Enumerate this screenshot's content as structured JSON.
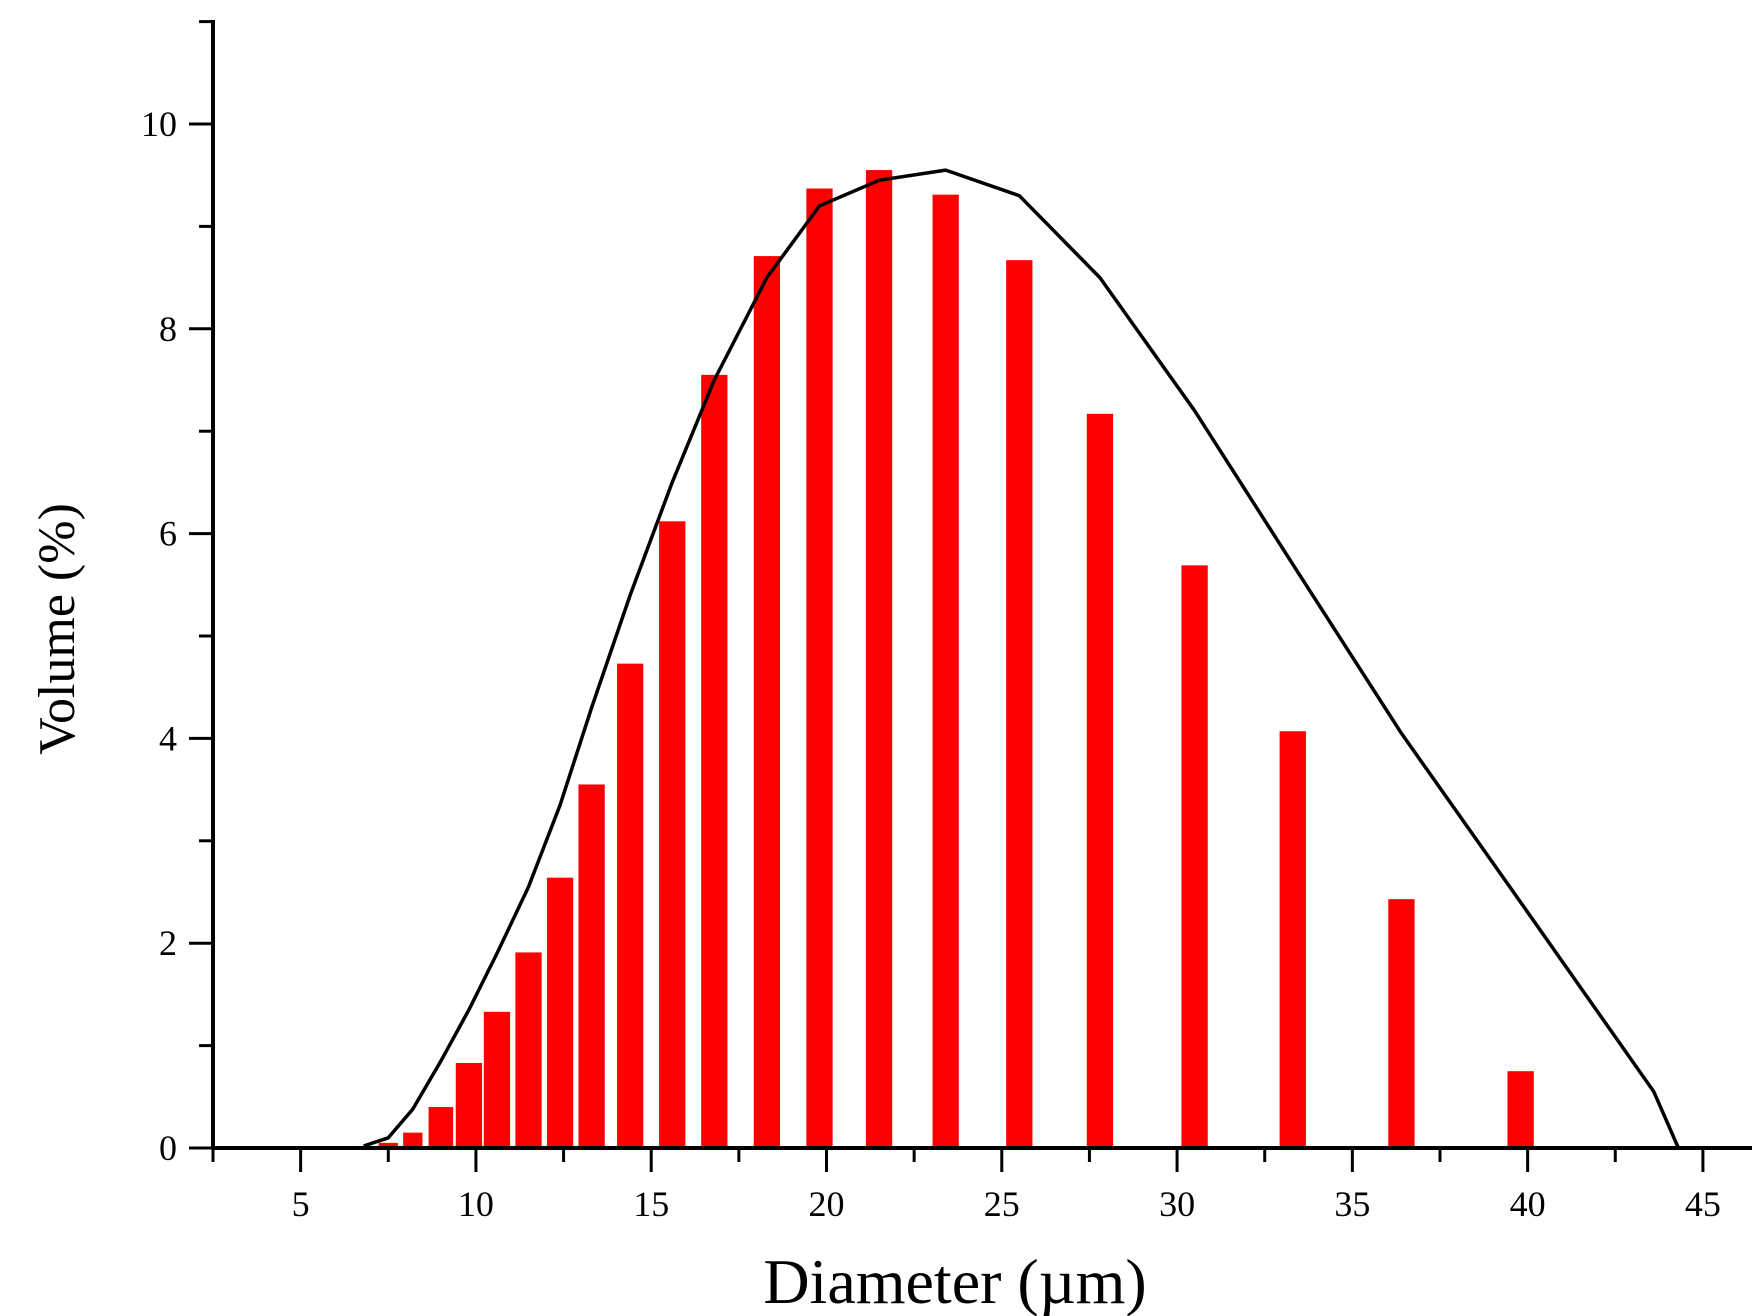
{
  "chart_data": {
    "type": "bar",
    "xlabel": "Diameter (µm)",
    "ylabel": "Volume (%)",
    "xlim": [
      2.5,
      46.4
    ],
    "ylim": [
      0,
      11
    ],
    "xticks": [
      5,
      10,
      15,
      20,
      25,
      30,
      35,
      40,
      45
    ],
    "yticks": [
      0,
      2,
      4,
      6,
      8,
      10
    ],
    "bar_color": "#ff0000",
    "line_color": "#000000",
    "grid": false,
    "legend": "none",
    "bars": {
      "x": [
        6.8,
        7.5,
        8.2,
        9.0,
        9.8,
        10.6,
        11.5,
        12.4,
        13.3,
        14.4,
        15.6,
        16.8,
        18.3,
        19.8,
        21.5,
        23.4,
        25.5,
        27.8,
        30.5,
        33.3,
        36.4,
        39.8,
        43.6
      ],
      "values": [
        0.02,
        0.05,
        0.15,
        0.4,
        0.83,
        1.33,
        1.91,
        2.64,
        3.55,
        4.73,
        6.12,
        7.55,
        8.71,
        9.37,
        9.55,
        9.31,
        8.67,
        7.17,
        5.69,
        4.07,
        2.43,
        0.75,
        0.0
      ],
      "widths": [
        0.5,
        0.55,
        0.55,
        0.7,
        0.75,
        0.75,
        0.75,
        0.75,
        0.75,
        0.75,
        0.75,
        0.75,
        0.75,
        0.75,
        0.75,
        0.75,
        0.75,
        0.75,
        0.75,
        0.75,
        0.75,
        0.75,
        0.75
      ]
    },
    "curve": {
      "x": [
        6.8,
        7.5,
        8.2,
        9.0,
        9.8,
        10.6,
        11.5,
        12.4,
        13.3,
        14.4,
        15.6,
        16.8,
        18.3,
        19.8,
        21.5,
        23.4,
        25.5,
        27.8,
        30.5,
        33.3,
        36.4,
        39.8,
        43.6,
        44.3
      ],
      "y": [
        0.02,
        0.1,
        0.38,
        0.85,
        1.35,
        1.9,
        2.55,
        3.35,
        4.3,
        5.4,
        6.5,
        7.5,
        8.5,
        9.2,
        9.45,
        9.55,
        9.3,
        8.5,
        7.2,
        5.7,
        4.05,
        2.4,
        0.55,
        0.0
      ]
    }
  }
}
